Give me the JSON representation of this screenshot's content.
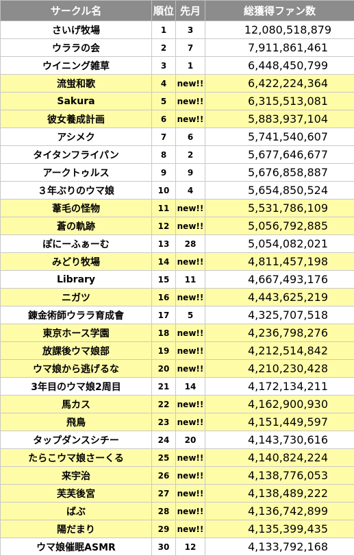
{
  "header": {
    "name": "サークル名",
    "rank": "順位",
    "prev": "先月",
    "fans": "総獲得ファン数"
  },
  "colors": {
    "header_bg": "#8c8c8c",
    "new_row_bg": "#fffca8",
    "row_bg": "#ffffff"
  },
  "rows": [
    {
      "name": "さいげ牧場",
      "rank": "1",
      "prev": "3",
      "fans": "12,080,518,879",
      "is_new": false
    },
    {
      "name": "ウララの会",
      "rank": "2",
      "prev": "7",
      "fans": "7,911,861,461",
      "is_new": false
    },
    {
      "name": "ウイニング雑草",
      "rank": "3",
      "prev": "1",
      "fans": "6,448,450,799",
      "is_new": false
    },
    {
      "name": "流蛍和歌",
      "rank": "4",
      "prev": "new!!",
      "fans": "6,422,224,364",
      "is_new": true
    },
    {
      "name": "Sakura",
      "rank": "5",
      "prev": "new!!",
      "fans": "6,315,513,081",
      "is_new": true
    },
    {
      "name": "彼女養成計画",
      "rank": "6",
      "prev": "new!!",
      "fans": "5,883,937,104",
      "is_new": true
    },
    {
      "name": "アシメク",
      "rank": "7",
      "prev": "6",
      "fans": "5,741,540,607",
      "is_new": false
    },
    {
      "name": "タイタンフライパン",
      "rank": "8",
      "prev": "2",
      "fans": "5,677,646,677",
      "is_new": false
    },
    {
      "name": "アークトゥルス",
      "rank": "9",
      "prev": "9",
      "fans": "5,676,858,887",
      "is_new": false
    },
    {
      "name": "３年ぶりのウマ娘",
      "rank": "10",
      "prev": "4",
      "fans": "5,654,850,524",
      "is_new": false
    },
    {
      "name": "葦毛の怪物",
      "rank": "11",
      "prev": "new!!",
      "fans": "5,531,786,109",
      "is_new": true
    },
    {
      "name": "蒼の軌跡",
      "rank": "12",
      "prev": "new!!",
      "fans": "5,056,792,885",
      "is_new": true
    },
    {
      "name": "ぽにーふぁーむ",
      "rank": "13",
      "prev": "28",
      "fans": "5,054,082,021",
      "is_new": false
    },
    {
      "name": "みどり牧場",
      "rank": "14",
      "prev": "new!!",
      "fans": "4,811,457,198",
      "is_new": true
    },
    {
      "name": "Library",
      "rank": "15",
      "prev": "11",
      "fans": "4,667,493,176",
      "is_new": false
    },
    {
      "name": "ニガツ",
      "rank": "16",
      "prev": "new!!",
      "fans": "4,443,625,219",
      "is_new": true
    },
    {
      "name": "錬金術師ウララ育成會",
      "rank": "17",
      "prev": "5",
      "fans": "4,325,707,518",
      "is_new": false
    },
    {
      "name": "東京ホース学園",
      "rank": "18",
      "prev": "new!!",
      "fans": "4,236,798,276",
      "is_new": true
    },
    {
      "name": "放課後ウマ娘部",
      "rank": "19",
      "prev": "new!!",
      "fans": "4,212,514,842",
      "is_new": true
    },
    {
      "name": "ウマ娘から逃げるな",
      "rank": "20",
      "prev": "new!!",
      "fans": "4,210,230,428",
      "is_new": true
    },
    {
      "name": "3年目のウマ娘2周目",
      "rank": "21",
      "prev": "14",
      "fans": "4,172,134,211",
      "is_new": false
    },
    {
      "name": "馬カス",
      "rank": "22",
      "prev": "new!!",
      "fans": "4,162,900,930",
      "is_new": true
    },
    {
      "name": "飛鳥",
      "rank": "23",
      "prev": "new!!",
      "fans": "4,151,449,597",
      "is_new": true
    },
    {
      "name": "タップダンスシチー",
      "rank": "24",
      "prev": "20",
      "fans": "4,143,730,616",
      "is_new": false
    },
    {
      "name": "たらこウマ娘さーくる",
      "rank": "25",
      "prev": "new!!",
      "fans": "4,140,824,224",
      "is_new": true
    },
    {
      "name": "来宇治",
      "rank": "26",
      "prev": "new!!",
      "fans": "4,138,776,053",
      "is_new": true
    },
    {
      "name": "芙芙後宮",
      "rank": "27",
      "prev": "new!!",
      "fans": "4,138,489,222",
      "is_new": true
    },
    {
      "name": "ばぶ",
      "rank": "28",
      "prev": "new!!",
      "fans": "4,136,742,899",
      "is_new": true
    },
    {
      "name": "陽だまり",
      "rank": "29",
      "prev": "new!!",
      "fans": "4,135,399,435",
      "is_new": true
    },
    {
      "name": "ウマ娘催眠ASMR",
      "rank": "30",
      "prev": "12",
      "fans": "4,133,792,168",
      "is_new": false
    }
  ]
}
